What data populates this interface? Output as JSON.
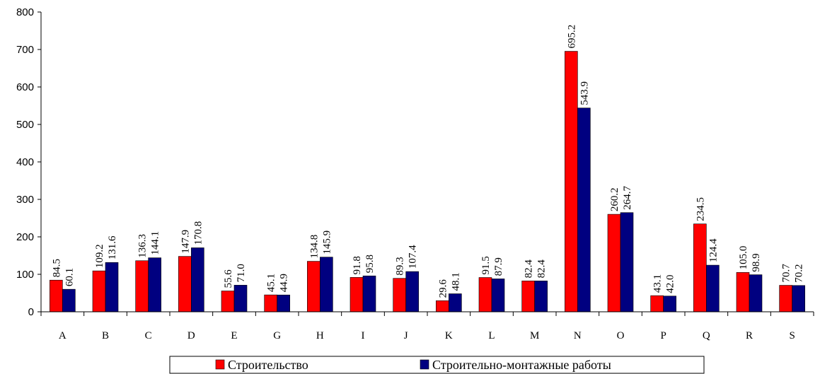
{
  "chart_data": {
    "type": "bar",
    "categories": [
      "A",
      "B",
      "C",
      "D",
      "E",
      "G",
      "H",
      "I",
      "J",
      "K",
      "L",
      "M",
      "N",
      "O",
      "P",
      "Q",
      "R",
      "S"
    ],
    "series": [
      {
        "name": "Строительство",
        "color": "#ff0000",
        "values": [
          84.5,
          109.2,
          136.3,
          147.9,
          55.6,
          45.1,
          134.8,
          91.8,
          89.3,
          29.6,
          91.5,
          82.4,
          695.2,
          260.2,
          43.1,
          234.5,
          105.0,
          70.7
        ],
        "labels": [
          "84.5",
          "109.2",
          "136.3",
          "147.9",
          "55.6",
          "45.1",
          "134.8",
          "91.8",
          "89.3",
          "29.6",
          "91.5",
          "82.4",
          "695.2",
          "260.2",
          "43.1",
          "234.5",
          "105.0",
          "70.7"
        ]
      },
      {
        "name": "Строительно-монтажные работы",
        "color": "#000080",
        "values": [
          60.1,
          131.6,
          144.1,
          170.8,
          71.0,
          44.9,
          145.9,
          95.8,
          107.4,
          48.1,
          87.9,
          82.4,
          543.9,
          264.7,
          42.0,
          124.4,
          98.9,
          70.2
        ],
        "labels": [
          "60.1",
          "131.6",
          "144.1",
          "170.8",
          "71.0",
          "44.9",
          "145.9",
          "95.8",
          "107.4",
          "48.1",
          "87.9",
          "82.4",
          "543.9",
          "264.7",
          "42.0",
          "124.4",
          "98.9",
          "70.2"
        ]
      }
    ],
    "ylim": [
      0,
      800
    ],
    "yticks": [
      "0",
      "100",
      "200",
      "300",
      "400",
      "500",
      "600",
      "700",
      "800"
    ],
    "title": "",
    "xlabel": "",
    "ylabel": "",
    "legend_position": "bottom",
    "grid": false
  }
}
